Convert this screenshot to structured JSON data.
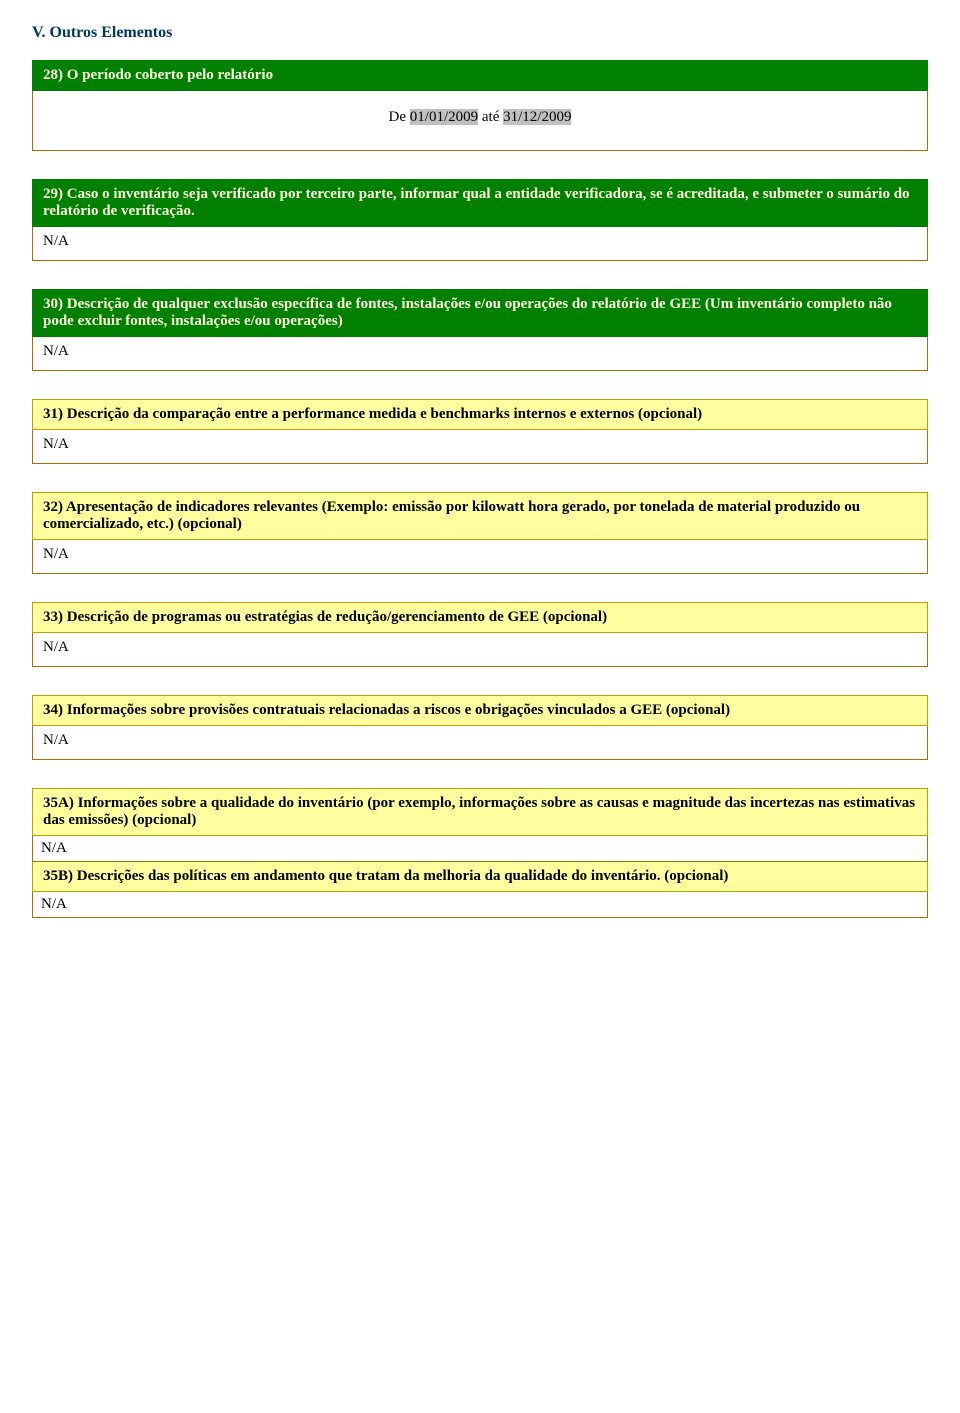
{
  "colors": {
    "title_color": "#003a63",
    "green_band_bg": "#008000",
    "green_band_text": "#ffffe0",
    "yellow_band_bg": "#ffffa0",
    "yellow_band_border": "#c0a000",
    "answer_border": "#b07000",
    "highlight_bg": "#c0c0c0",
    "body_bg": "#ffffff"
  },
  "typography": {
    "title_fontsize_pt": 12,
    "body_fontsize_pt": 11,
    "band_fontweight": "bold",
    "font_family": "serif"
  },
  "section_title": "V. Outros Elementos",
  "q28": {
    "heading": "28) O período coberto pelo relatório",
    "prefix": "De ",
    "date_from": "01/01/2009",
    "mid": " até ",
    "date_to": "31/12/2009"
  },
  "q29": {
    "heading": "29) Caso o inventário seja verificado por terceiro parte, informar qual a entidade verificadora, se é acreditada, e submeter o sumário do relatório de verificação.",
    "answer": "N/A"
  },
  "q30": {
    "heading": "30) Descrição de qualquer exclusão específica de fontes, instalações e/ou operações do relatório de GEE (Um inventário completo não pode excluir fontes, instalações e/ou operações)",
    "answer": "N/A"
  },
  "q31": {
    "heading": "31) Descrição da comparação entre a performance medida e benchmarks internos e externos (opcional)",
    "answer": "N/A"
  },
  "q32": {
    "heading": "32) Apresentação de indicadores relevantes (Exemplo: emissão por kilowatt hora gerado, por tonelada de material produzido ou comercializado, etc.) (opcional)",
    "answer": "N/A"
  },
  "q33": {
    "heading": "33) Descrição de programas ou estratégias de redução/gerenciamento de GEE (opcional)",
    "answer": "N/A"
  },
  "q34": {
    "heading": "34) Informações sobre provisões contratuais relacionadas a riscos e obrigações vinculados a GEE (opcional)",
    "answer": "N/A"
  },
  "q35a": {
    "heading": "35A) Informações sobre a qualidade do inventário (por exemplo, informações sobre as causas e magnitude das incertezas nas estimativas das emissões) (opcional)",
    "answer": "N/A"
  },
  "q35b": {
    "heading": "35B) Descrições das políticas em andamento que tratam da melhoria da qualidade do inventário. (opcional)",
    "answer": "N/A"
  }
}
